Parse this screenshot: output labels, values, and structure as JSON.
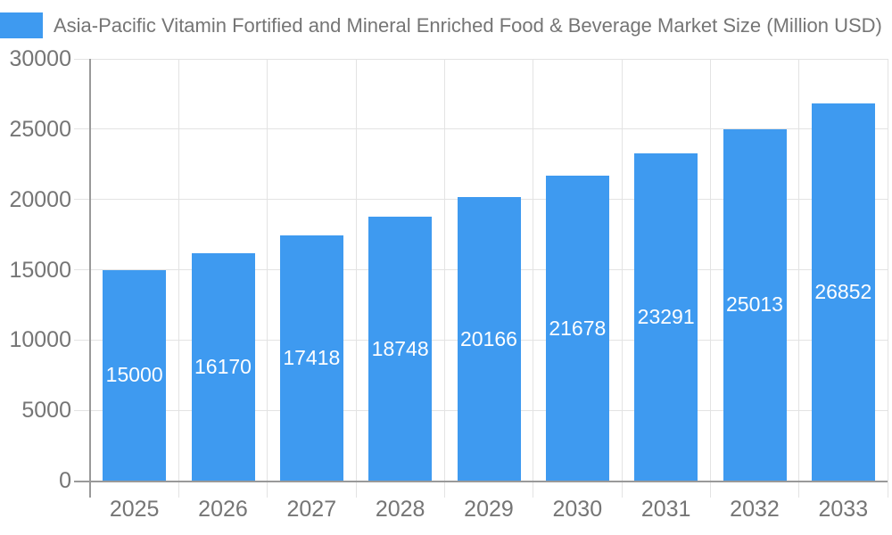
{
  "chart_data": {
    "type": "bar",
    "title": "Asia-Pacific Vitamin Fortified and Mineral Enriched Food & Beverage Market Size (Million USD)",
    "categories": [
      "2025",
      "2026",
      "2027",
      "2028",
      "2029",
      "2030",
      "2031",
      "2032",
      "2033"
    ],
    "values": [
      15000,
      16170,
      17418,
      18748,
      20166,
      21678,
      23291,
      25013,
      26852
    ],
    "xlabel": "",
    "ylabel": "",
    "ylim": [
      0,
      30000
    ],
    "yticks": [
      0,
      5000,
      10000,
      15000,
      20000,
      25000,
      30000
    ],
    "grid": true,
    "legend_position": "top-left",
    "bar_color": "#3E9AF0",
    "value_label_color": "#FFFFFF",
    "axis_text_color": "#757575",
    "gridline_color": "#E3E3E3",
    "axis_line_color": "#999999"
  }
}
